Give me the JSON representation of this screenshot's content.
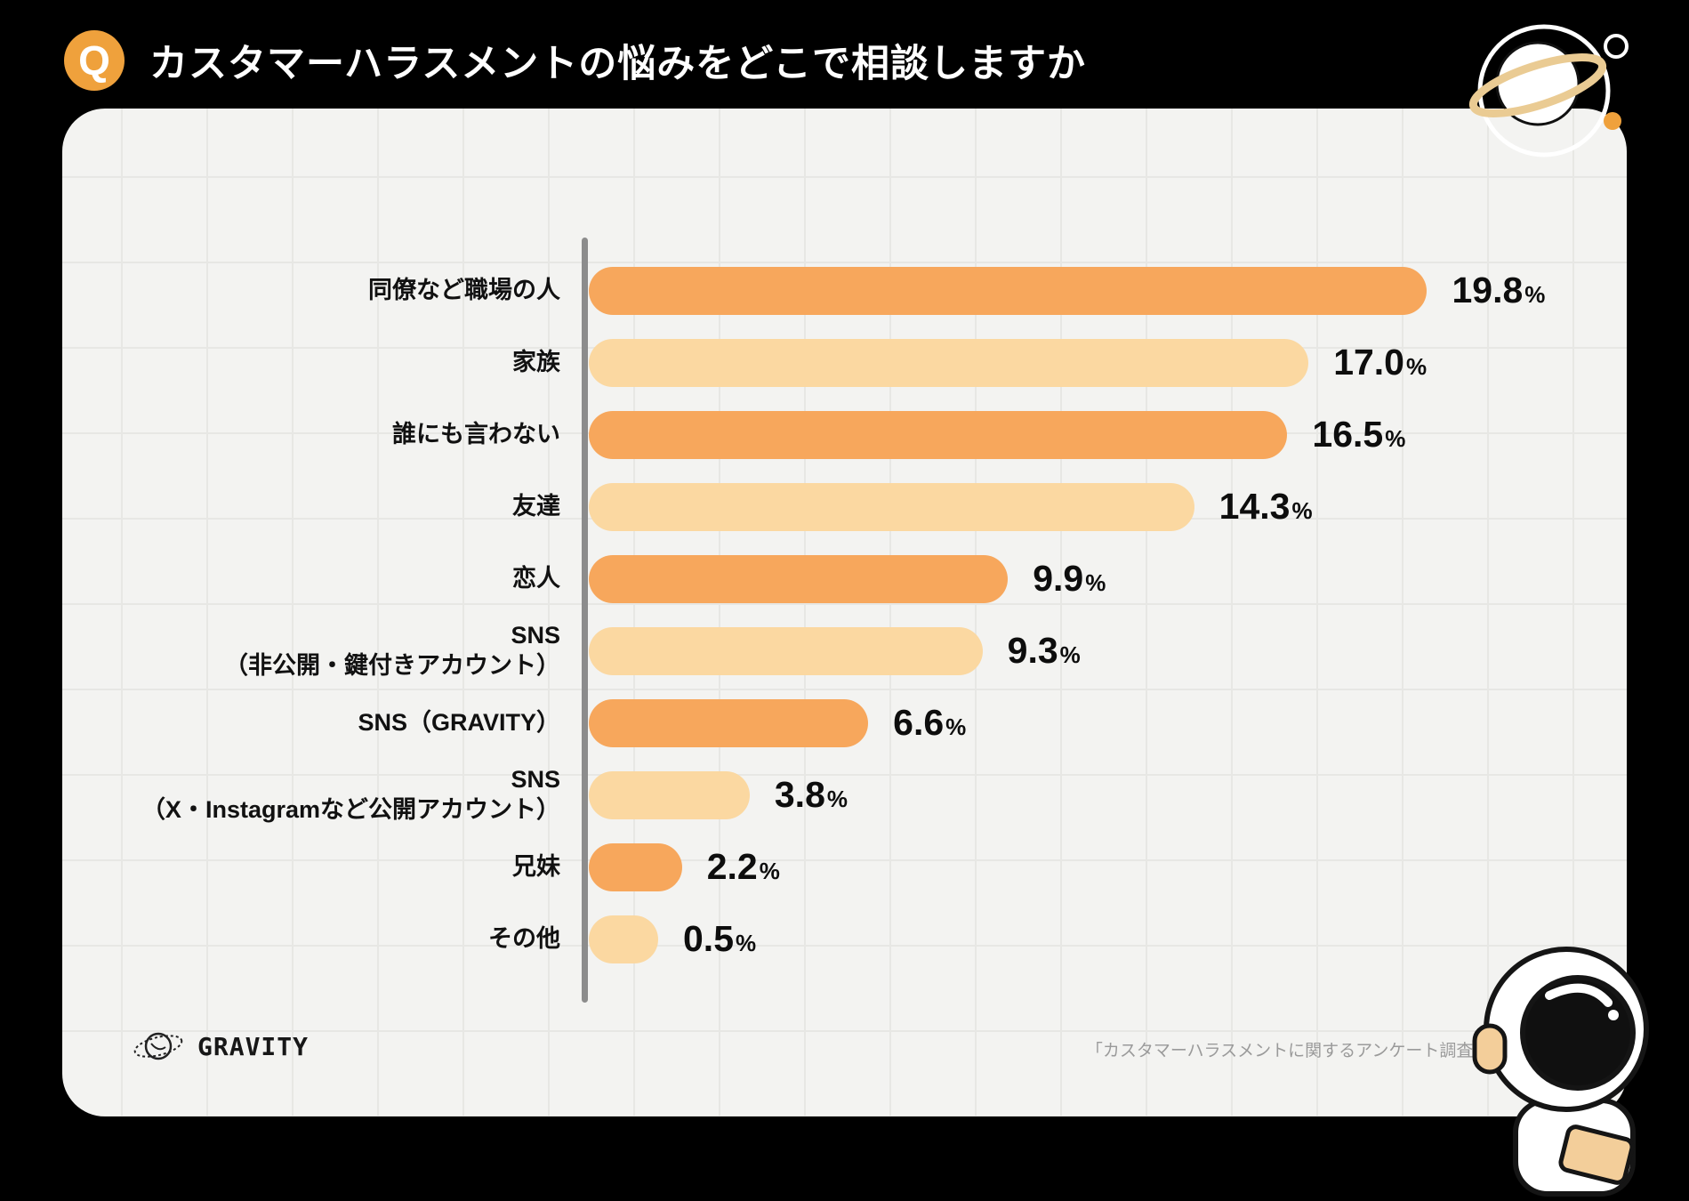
{
  "header": {
    "q_badge": "Q",
    "title": "カスタマーハラスメントの悩みをどこで相談しますか"
  },
  "chart_data": {
    "type": "bar",
    "orientation": "horizontal",
    "title": "カスタマーハラスメントの悩みをどこで相談しますか",
    "unit": "%",
    "xlim": [
      0,
      20
    ],
    "grid": true,
    "categories": [
      "同僚など職場の人",
      "家族",
      "誰にも言わない",
      "友達",
      "恋人",
      "SNS\n（非公開・鍵付きアカウント）",
      "SNS（GRAVITY）",
      "SNS\n（X・Instagramなど公開アカウント）",
      "兄妹",
      "その他"
    ],
    "values": [
      19.8,
      17.0,
      16.5,
      14.3,
      9.9,
      9.3,
      6.6,
      3.8,
      2.2,
      0.5
    ],
    "value_labels": [
      "19.8",
      "17.0",
      "16.5",
      "14.3",
      "9.9",
      "9.3",
      "6.6",
      "3.8",
      "2.2",
      "0.5"
    ],
    "bar_colors_alternate": [
      "#F7A75C",
      "#FBD8A1"
    ]
  },
  "footer": {
    "brand": "GRAVITY",
    "source": "「カスタマーハラスメントに関するアンケート調査」 n=182"
  },
  "colors": {
    "background": "#000000",
    "card": "#F3F3F1",
    "accent_orange": "#EFA13C",
    "axis_gray": "#8C8C8C"
  }
}
